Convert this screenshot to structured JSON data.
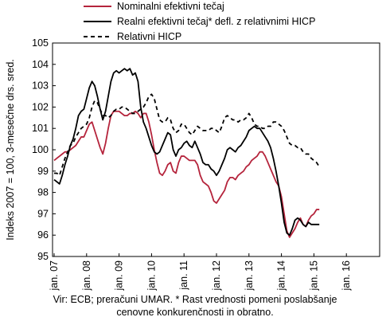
{
  "chart_data": {
    "type": "line",
    "ylabel": "Indeks 2007 = 100, 3-mesečne drs. sred.",
    "ylim": [
      95,
      105
    ],
    "yticks": [
      "95",
      "96",
      "97",
      "98",
      "99",
      "100",
      "101",
      "102",
      "103",
      "104",
      "105"
    ],
    "xticks": [
      "jan. 07",
      "jan. 08",
      "jan. 09",
      "jan. 10",
      "jan. 11",
      "jan. 12",
      "jan. 13",
      "jan. 14",
      "jan. 15",
      "jan. 16"
    ],
    "x_start": "2007-01",
    "grid": false,
    "legend": "top",
    "note_line1": "Vir: ECB; preračuni UMAR. * Rast vrednosti pomeni poslabšanje",
    "note_line2": "cenovne konkurenčnosti in obratno.",
    "series": [
      {
        "name": "Nominalni efektivni tečaj",
        "color": "#b5243c",
        "style": "solid",
        "values": [
          99.5,
          99.6,
          99.7,
          99.8,
          99.9,
          99.9,
          100.0,
          100.1,
          100.2,
          100.4,
          100.6,
          100.6,
          100.9,
          101.2,
          101.3,
          100.9,
          100.5,
          100.1,
          99.8,
          100.3,
          101.0,
          101.6,
          101.8,
          101.8,
          101.8,
          101.7,
          101.6,
          101.6,
          101.7,
          101.7,
          101.8,
          101.7,
          101.5,
          101.7,
          101.7,
          101.3,
          100.7,
          100.0,
          99.4,
          98.9,
          98.8,
          99.0,
          99.3,
          99.4,
          99.0,
          98.9,
          99.4,
          99.7,
          99.7,
          99.6,
          99.5,
          99.5,
          99.5,
          99.3,
          98.8,
          98.5,
          98.4,
          98.3,
          98.0,
          97.6,
          97.5,
          97.7,
          97.9,
          98.1,
          98.5,
          98.7,
          98.7,
          98.6,
          98.8,
          98.9,
          99.0,
          99.2,
          99.3,
          99.5,
          99.6,
          99.7,
          99.9,
          99.9,
          99.7,
          99.4,
          99.1,
          98.8,
          98.5,
          98.3,
          97.8,
          97.0,
          96.2,
          95.9,
          96.1,
          96.3,
          96.6,
          96.8,
          96.5,
          96.4,
          96.7,
          96.9,
          97.0,
          97.2,
          97.2
        ]
      },
      {
        "name": "Realni efektivni tečaj* defl. z relativnimi HICP",
        "color": "#000000",
        "style": "solid",
        "values": [
          98.6,
          98.5,
          98.4,
          98.8,
          99.3,
          99.7,
          100.2,
          100.5,
          101.0,
          101.6,
          101.8,
          101.9,
          102.4,
          102.9,
          103.2,
          103.0,
          102.5,
          101.9,
          101.4,
          101.8,
          102.5,
          103.2,
          103.6,
          103.7,
          103.6,
          103.7,
          103.8,
          103.7,
          103.8,
          103.5,
          103.6,
          103.2,
          102.0,
          101.3,
          101.0,
          100.6,
          100.2,
          99.9,
          99.8,
          99.9,
          100.2,
          100.5,
          100.8,
          100.7,
          100.0,
          99.7,
          100.0,
          100.1,
          100.3,
          100.4,
          100.2,
          100.1,
          100.4,
          100.1,
          99.8,
          99.4,
          99.3,
          99.3,
          99.1,
          99.0,
          98.8,
          99.0,
          99.3,
          99.6,
          100.0,
          100.1,
          100.0,
          99.9,
          100.1,
          100.2,
          100.4,
          100.6,
          100.9,
          101.0,
          101.1,
          101.0,
          101.0,
          100.8,
          100.6,
          100.4,
          100.1,
          99.6,
          99.0,
          98.3,
          97.5,
          96.6,
          96.1,
          96.0,
          96.3,
          96.7,
          96.8,
          96.7,
          96.5,
          96.4,
          96.6,
          96.5,
          96.5,
          96.5,
          96.5
        ]
      },
      {
        "name": "Relativni HICP",
        "color": "#000000",
        "style": "dashed",
        "values": [
          98.9,
          98.9,
          98.8,
          99.2,
          99.6,
          99.9,
          100.2,
          100.3,
          100.6,
          100.8,
          101.0,
          101.1,
          101.2,
          101.5,
          102.0,
          102.3,
          102.2,
          101.9,
          101.6,
          101.6,
          101.5,
          101.6,
          101.8,
          101.9,
          101.9,
          102.0,
          102.0,
          101.9,
          101.8,
          101.7,
          101.7,
          101.8,
          101.9,
          102.0,
          102.2,
          102.5,
          102.6,
          102.4,
          101.9,
          101.4,
          101.3,
          101.3,
          101.5,
          101.4,
          101.0,
          100.8,
          100.9,
          101.2,
          101.2,
          101.0,
          100.8,
          100.7,
          100.9,
          101.1,
          101.0,
          100.9,
          100.9,
          100.9,
          101.0,
          101.0,
          100.9,
          100.8,
          101.1,
          101.5,
          101.6,
          101.5,
          101.4,
          101.4,
          101.3,
          101.4,
          101.4,
          101.5,
          101.7,
          101.5,
          101.2,
          101.1,
          101.1,
          101.0,
          101.0,
          101.1,
          101.1,
          101.3,
          101.3,
          101.2,
          101.1,
          100.9,
          100.6,
          100.3,
          100.2,
          100.2,
          100.1,
          100.1,
          99.9,
          99.8,
          99.8,
          99.6,
          99.5,
          99.4,
          99.2
        ]
      }
    ]
  }
}
